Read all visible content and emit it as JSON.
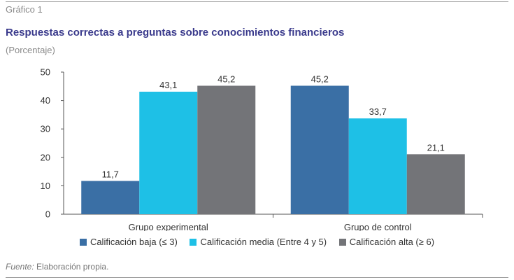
{
  "figure_label": "Gráfico 1",
  "source_label": "Fuente:",
  "source_text": " Elaboración propia.",
  "chart_data": {
    "type": "bar",
    "title": "Respuestas correctas a preguntas sobre conocimientos financieros",
    "subtitle": "(Porcentaje)",
    "categories": [
      "Grupo experimental",
      "Grupo de control"
    ],
    "series": [
      {
        "name": "Calificación baja (≤ 3)",
        "values": [
          11.7,
          45.2
        ],
        "labels": [
          "11,7",
          "45,2"
        ],
        "color": "#3a6fa5"
      },
      {
        "name": "Calificación media (Entre 4 y 5)",
        "values": [
          43.1,
          33.7
        ],
        "labels": [
          "43,1",
          "33,7"
        ],
        "color": "#1ec0e6"
      },
      {
        "name": "Calificación alta (≥ 6)",
        "values": [
          45.2,
          21.1
        ],
        "labels": [
          "45,2",
          "21,1"
        ],
        "color": "#737478"
      }
    ],
    "yticks": [
      0,
      10,
      20,
      30,
      40,
      50
    ],
    "ylim": [
      0,
      50
    ],
    "legend": "bottom",
    "grid": false
  }
}
